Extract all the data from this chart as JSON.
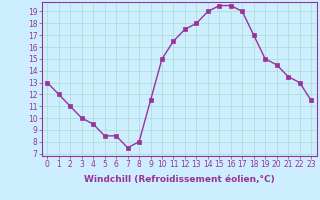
{
  "x": [
    0,
    1,
    2,
    3,
    4,
    5,
    6,
    7,
    8,
    9,
    10,
    11,
    12,
    13,
    14,
    15,
    16,
    17,
    18,
    19,
    20,
    21,
    22,
    23
  ],
  "y": [
    13,
    12,
    11,
    10,
    9.5,
    8.5,
    8.5,
    7.5,
    8,
    11.5,
    15,
    16.5,
    17.5,
    18,
    19,
    19.5,
    19.5,
    19,
    17,
    15,
    14.5,
    13.5,
    13,
    11.5
  ],
  "line_color": "#993399",
  "marker": "s",
  "marker_size": 2.5,
  "linewidth": 1.0,
  "xlabel": "Windchill (Refroidissement éolien,°C)",
  "xlabel_fontsize": 6.5,
  "ylabel_ticks": [
    7,
    8,
    9,
    10,
    11,
    12,
    13,
    14,
    15,
    16,
    17,
    18,
    19
  ],
  "xticks": [
    0,
    1,
    2,
    3,
    4,
    5,
    6,
    7,
    8,
    9,
    10,
    11,
    12,
    13,
    14,
    15,
    16,
    17,
    18,
    19,
    20,
    21,
    22,
    23
  ],
  "ylim": [
    6.8,
    19.8
  ],
  "xlim": [
    -0.5,
    23.5
  ],
  "bg_color": "#cceeff",
  "grid_color": "#aaddcc",
  "tick_color": "#993399",
  "tick_fontsize": 5.5,
  "spine_color": "#993399"
}
